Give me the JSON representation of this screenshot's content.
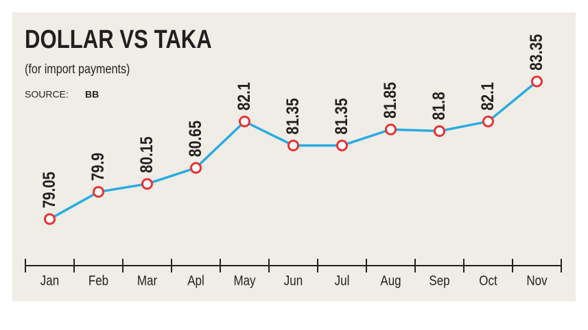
{
  "chart_data": {
    "type": "line",
    "title": "DOLLAR VS TAKA",
    "subtitle": "(for import payments)",
    "source_label": "SOURCE:",
    "source": "BB",
    "categories": [
      "Jan",
      "Feb",
      "Mar",
      "Apl",
      "May",
      "Jun",
      "Jul",
      "Aug",
      "Sep",
      "Oct",
      "Nov"
    ],
    "values": [
      79.05,
      79.9,
      80.15,
      80.65,
      82.1,
      81.35,
      81.35,
      81.85,
      81.8,
      82.1,
      83.35
    ],
    "color": "#29abe2",
    "marker_color": "#e8312f"
  }
}
